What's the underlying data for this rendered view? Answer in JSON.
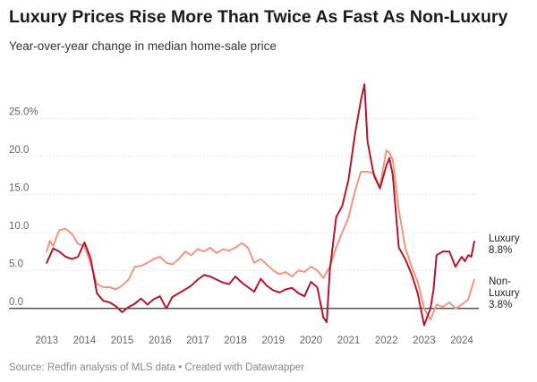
{
  "title": "Luxury Prices Rise More Than Twice As Fast As Non-Luxury",
  "subtitle": "Year-over-year change in median home-sale price",
  "footer": "Source: Redfin analysis of MLS data • Created with Datawrapper",
  "colors": {
    "luxury": "#b2182b",
    "non_luxury": "#f4957b",
    "grid": "#dddddd",
    "zero": "#333333"
  },
  "chart_data": {
    "type": "line",
    "title": "Luxury Prices Rise More Than Twice As Fast As Non-Luxury",
    "subtitle": "Year-over-year change in median home-sale price",
    "xlabel": "",
    "ylabel": "",
    "xlim": [
      2012.9,
      2024.45
    ],
    "ylim": [
      -2.5,
      30
    ],
    "y_ticks": [
      0,
      5,
      10,
      15,
      20,
      25
    ],
    "y_tick_labels": [
      "0.0",
      "5.0",
      "10.0",
      "15.0",
      "20.0",
      "25.0%"
    ],
    "x_ticks": [
      2013,
      2014,
      2015,
      2016,
      2017,
      2018,
      2019,
      2020,
      2021,
      2022,
      2023,
      2024
    ],
    "x_tick_labels": [
      "2013",
      "2014",
      "2015",
      "2016",
      "2017",
      "2018",
      "2019",
      "2020",
      "2021",
      "2022",
      "2023",
      "2024"
    ],
    "grid": true,
    "legend": "inline-right",
    "series": [
      {
        "name": "Luxury",
        "end_label": [
          "Luxury",
          "8.8%"
        ],
        "color": "#b2182b",
        "x": [
          2013.0,
          2013.17,
          2013.33,
          2013.5,
          2013.67,
          2013.83,
          2014.0,
          2014.17,
          2014.33,
          2014.5,
          2014.67,
          2014.83,
          2015.0,
          2015.17,
          2015.33,
          2015.5,
          2015.67,
          2015.83,
          2016.0,
          2016.17,
          2016.33,
          2016.5,
          2016.67,
          2016.83,
          2017.0,
          2017.17,
          2017.33,
          2017.5,
          2017.67,
          2017.83,
          2018.0,
          2018.17,
          2018.33,
          2018.5,
          2018.67,
          2018.83,
          2019.0,
          2019.17,
          2019.33,
          2019.5,
          2019.67,
          2019.83,
          2020.0,
          2020.17,
          2020.33,
          2020.42,
          2020.5,
          2020.67,
          2020.83,
          2021.0,
          2021.17,
          2021.33,
          2021.42,
          2021.5,
          2021.67,
          2021.83,
          2022.0,
          2022.08,
          2022.17,
          2022.33,
          2022.5,
          2022.67,
          2022.83,
          2023.0,
          2023.17,
          2023.25,
          2023.33,
          2023.5,
          2023.67,
          2023.83,
          2024.0,
          2024.08,
          2024.17,
          2024.25,
          2024.33
        ],
        "values": [
          6.0,
          7.9,
          7.5,
          6.8,
          6.5,
          6.8,
          8.7,
          6.5,
          2.0,
          1.0,
          0.8,
          0.3,
          -0.5,
          0.2,
          0.6,
          1.3,
          0.5,
          1.2,
          1.6,
          0.0,
          1.5,
          2.0,
          2.5,
          3.0,
          3.8,
          4.4,
          4.2,
          3.8,
          3.4,
          3.2,
          4.2,
          3.4,
          2.8,
          2.2,
          3.9,
          3.0,
          2.4,
          2.1,
          2.5,
          2.7,
          2.0,
          1.6,
          3.5,
          2.8,
          -1.2,
          -1.8,
          5.0,
          12.0,
          13.5,
          17.0,
          23.0,
          27.5,
          29.5,
          22.0,
          17.5,
          15.8,
          18.8,
          19.8,
          17.5,
          8.0,
          6.5,
          4.5,
          2.0,
          -2.2,
          0.0,
          2.5,
          7.0,
          7.5,
          7.5,
          5.5,
          6.8,
          6.2,
          7.0,
          6.8,
          8.8
        ]
      },
      {
        "name": "Non-Luxury",
        "end_label": [
          "Non-",
          "Luxury",
          "3.8%"
        ],
        "color": "#f4957b",
        "x": [
          2013.0,
          2013.08,
          2013.17,
          2013.33,
          2013.5,
          2013.67,
          2013.83,
          2014.0,
          2014.17,
          2014.33,
          2014.5,
          2014.67,
          2014.83,
          2015.0,
          2015.17,
          2015.33,
          2015.5,
          2015.67,
          2015.83,
          2016.0,
          2016.17,
          2016.33,
          2016.5,
          2016.67,
          2016.83,
          2017.0,
          2017.17,
          2017.33,
          2017.5,
          2017.67,
          2017.83,
          2018.0,
          2018.17,
          2018.33,
          2018.5,
          2018.67,
          2018.83,
          2019.0,
          2019.17,
          2019.33,
          2019.5,
          2019.67,
          2019.83,
          2020.0,
          2020.17,
          2020.33,
          2020.5,
          2020.67,
          2020.83,
          2021.0,
          2021.17,
          2021.33,
          2021.5,
          2021.67,
          2021.83,
          2022.0,
          2022.08,
          2022.17,
          2022.33,
          2022.5,
          2022.67,
          2022.83,
          2023.0,
          2023.17,
          2023.33,
          2023.5,
          2023.67,
          2023.83,
          2024.0,
          2024.17,
          2024.33
        ],
        "values": [
          7.5,
          8.9,
          8.2,
          10.3,
          10.5,
          9.8,
          8.5,
          8.2,
          5.8,
          3.2,
          2.8,
          2.8,
          2.5,
          3.0,
          3.8,
          5.5,
          5.6,
          6.0,
          6.5,
          6.8,
          6.0,
          5.8,
          6.5,
          7.5,
          7.0,
          7.8,
          7.5,
          8.0,
          7.3,
          7.8,
          7.6,
          8.0,
          8.6,
          8.0,
          6.0,
          6.5,
          5.8,
          5.0,
          4.5,
          4.8,
          4.2,
          5.0,
          4.8,
          5.5,
          5.0,
          4.0,
          5.5,
          8.0,
          10.0,
          12.0,
          15.5,
          18.0,
          18.0,
          17.8,
          16.0,
          20.8,
          20.5,
          19.5,
          13.0,
          8.0,
          5.5,
          3.5,
          0.0,
          -1.5,
          0.5,
          0.2,
          0.8,
          0.0,
          0.5,
          1.2,
          3.8
        ]
      }
    ]
  }
}
